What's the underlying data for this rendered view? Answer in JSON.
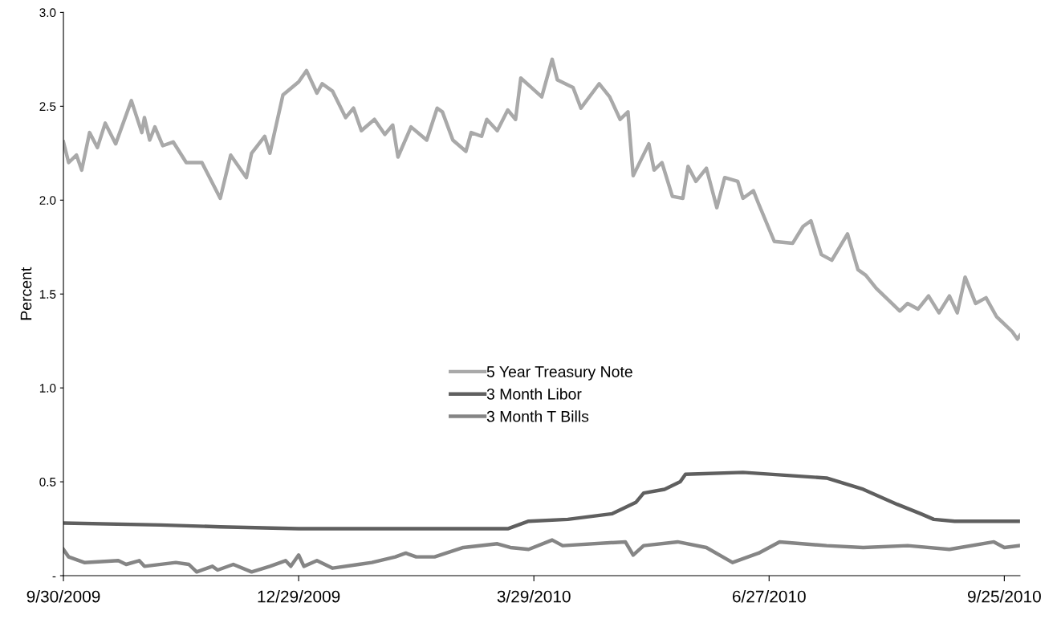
{
  "chart_data": {
    "type": "line",
    "ylabel": "Percent",
    "xlim": [
      "2009-09-30",
      "2010-10-01"
    ],
    "xticks": [
      {
        "value": "2009-09-30",
        "label": "9/30/2009"
      },
      {
        "value": "2009-12-29",
        "label": "12/29/2009"
      },
      {
        "value": "2010-03-29",
        "label": "3/29/2010"
      },
      {
        "value": "2010-06-27",
        "label": "6/27/2010"
      },
      {
        "value": "2010-09-25",
        "label": "9/25/2010"
      }
    ],
    "ylim": [
      0,
      3.0
    ],
    "yticks": [
      {
        "value": 0,
        "label": "-"
      },
      {
        "value": 0.5,
        "label": "0.5"
      },
      {
        "value": 1.0,
        "label": "1.0"
      },
      {
        "value": 1.5,
        "label": "1.5"
      },
      {
        "value": 2.0,
        "label": "2.0"
      },
      {
        "value": 2.5,
        "label": "2.5"
      },
      {
        "value": 3.0,
        "label": "3.0"
      }
    ],
    "grid": false,
    "legend": "center",
    "marker": "none",
    "line_style": "solid",
    "series": [
      {
        "name": "5 Year Treasury Note",
        "color": "#a9a9a9",
        "x": [
          "2009-09-30",
          "2009-10-02",
          "2009-10-05",
          "2009-10-07",
          "2009-10-10",
          "2009-10-13",
          "2009-10-16",
          "2009-10-20",
          "2009-10-26",
          "2009-10-30",
          "2009-10-31",
          "2009-11-02",
          "2009-11-04",
          "2009-11-07",
          "2009-11-11",
          "2009-11-16",
          "2009-11-22",
          "2009-11-29",
          "2009-12-03",
          "2009-12-09",
          "2009-12-11",
          "2009-12-16",
          "2009-12-18",
          "2009-12-23",
          "2009-12-29",
          "2010-01-01",
          "2010-01-05",
          "2010-01-07",
          "2010-01-11",
          "2010-01-16",
          "2010-01-19",
          "2010-01-22",
          "2010-01-27",
          "2010-01-31",
          "2010-02-03",
          "2010-02-05",
          "2010-02-10",
          "2010-02-16",
          "2010-02-20",
          "2010-02-22",
          "2010-02-26",
          "2010-03-03",
          "2010-03-05",
          "2010-03-09",
          "2010-03-11",
          "2010-03-15",
          "2010-03-19",
          "2010-03-22",
          "2010-03-24",
          "2010-03-28",
          "2010-04-01",
          "2010-04-05",
          "2010-04-07",
          "2010-04-13",
          "2010-04-16",
          "2010-04-23",
          "2010-04-27",
          "2010-05-01",
          "2010-05-04",
          "2010-05-06",
          "2010-05-12",
          "2010-05-14",
          "2010-05-17",
          "2010-05-21",
          "2010-05-25",
          "2010-05-27",
          "2010-05-30",
          "2010-06-03",
          "2010-06-07",
          "2010-06-10",
          "2010-06-15",
          "2010-06-17",
          "2010-06-21",
          "2010-06-23",
          "2010-06-29",
          "2010-07-06",
          "2010-07-10",
          "2010-07-13",
          "2010-07-17",
          "2010-07-21",
          "2010-07-27",
          "2010-07-31",
          "2010-08-03",
          "2010-08-07",
          "2010-08-13",
          "2010-08-16",
          "2010-08-19",
          "2010-08-23",
          "2010-08-27",
          "2010-08-31",
          "2010-09-04",
          "2010-09-07",
          "2010-09-10",
          "2010-09-14",
          "2010-09-18",
          "2010-09-22",
          "2010-09-25",
          "2010-09-28",
          "2010-09-30",
          "2010-10-01"
        ],
        "values": [
          2.31,
          2.2,
          2.24,
          2.16,
          2.36,
          2.28,
          2.41,
          2.3,
          2.53,
          2.36,
          2.44,
          2.32,
          2.39,
          2.29,
          2.31,
          2.2,
          2.2,
          2.01,
          2.24,
          2.12,
          2.25,
          2.34,
          2.25,
          2.56,
          2.63,
          2.69,
          2.57,
          2.62,
          2.58,
          2.44,
          2.49,
          2.37,
          2.43,
          2.35,
          2.4,
          2.23,
          2.39,
          2.32,
          2.49,
          2.47,
          2.32,
          2.26,
          2.36,
          2.34,
          2.43,
          2.37,
          2.48,
          2.43,
          2.65,
          2.6,
          2.55,
          2.75,
          2.64,
          2.6,
          2.49,
          2.62,
          2.55,
          2.43,
          2.47,
          2.13,
          2.3,
          2.16,
          2.2,
          2.02,
          2.01,
          2.18,
          2.1,
          2.17,
          1.96,
          2.12,
          2.1,
          2.01,
          2.05,
          1.98,
          1.78,
          1.77,
          1.86,
          1.89,
          1.71,
          1.68,
          1.82,
          1.63,
          1.6,
          1.53,
          1.45,
          1.41,
          1.45,
          1.42,
          1.49,
          1.4,
          1.49,
          1.4,
          1.59,
          1.45,
          1.48,
          1.38,
          1.34,
          1.3,
          1.26,
          1.28
        ]
      },
      {
        "name": "3 Month Libor",
        "color": "#5f5f5f",
        "x": [
          "2009-09-30",
          "2009-11-06",
          "2009-11-29",
          "2009-12-29",
          "2010-01-26",
          "2010-03-19",
          "2010-03-27",
          "2010-04-11",
          "2010-04-28",
          "2010-05-07",
          "2010-05-10",
          "2010-05-18",
          "2010-05-24",
          "2010-05-26",
          "2010-06-17",
          "2010-07-19",
          "2010-08-02",
          "2010-08-15",
          "2010-08-24",
          "2010-08-29",
          "2010-09-06",
          "2010-10-01"
        ],
        "values": [
          0.28,
          0.27,
          0.26,
          0.25,
          0.25,
          0.25,
          0.29,
          0.3,
          0.33,
          0.39,
          0.44,
          0.46,
          0.5,
          0.54,
          0.55,
          0.52,
          0.46,
          0.38,
          0.33,
          0.3,
          0.29,
          0.29
        ]
      },
      {
        "name": "3 Month T Bills",
        "color": "#858585",
        "x": [
          "2009-09-30",
          "2009-10-02",
          "2009-10-08",
          "2009-10-21",
          "2009-10-24",
          "2009-10-29",
          "2009-10-31",
          "2009-11-12",
          "2009-11-17",
          "2009-11-20",
          "2009-11-26",
          "2009-11-28",
          "2009-12-04",
          "2009-12-11",
          "2009-12-18",
          "2009-12-24",
          "2009-12-26",
          "2009-12-29",
          "2009-12-31",
          "2010-01-05",
          "2010-01-11",
          "2010-01-21",
          "2010-01-26",
          "2010-02-04",
          "2010-02-08",
          "2010-02-12",
          "2010-02-19",
          "2010-03-02",
          "2010-03-15",
          "2010-03-20",
          "2010-03-27",
          "2010-04-05",
          "2010-04-09",
          "2010-05-03",
          "2010-05-06",
          "2010-05-10",
          "2010-05-23",
          "2010-06-03",
          "2010-06-13",
          "2010-06-23",
          "2010-07-01",
          "2010-07-19",
          "2010-08-02",
          "2010-08-19",
          "2010-09-04",
          "2010-09-21",
          "2010-09-25",
          "2010-10-01"
        ],
        "values": [
          0.14,
          0.1,
          0.07,
          0.08,
          0.06,
          0.08,
          0.05,
          0.07,
          0.06,
          0.02,
          0.05,
          0.03,
          0.06,
          0.02,
          0.05,
          0.08,
          0.05,
          0.11,
          0.05,
          0.08,
          0.04,
          0.06,
          0.07,
          0.1,
          0.12,
          0.1,
          0.1,
          0.15,
          0.17,
          0.15,
          0.14,
          0.19,
          0.16,
          0.18,
          0.11,
          0.16,
          0.18,
          0.15,
          0.07,
          0.12,
          0.18,
          0.16,
          0.15,
          0.16,
          0.14,
          0.18,
          0.15,
          0.16
        ]
      }
    ]
  }
}
